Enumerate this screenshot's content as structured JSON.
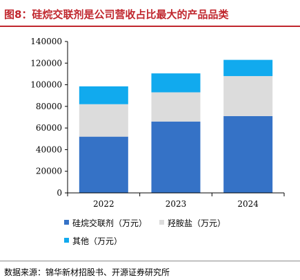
{
  "figure": {
    "title": "图8：硅烷交联剂是公司营收占比最大的产品品类",
    "source": "数据来源：锦华新材招股书、开源证券研究所"
  },
  "chart_data": {
    "type": "bar",
    "stacked": true,
    "categories": [
      "2022",
      "2023",
      "2024"
    ],
    "series": [
      {
        "name": "硅烷交联剂（万元）",
        "color": "#3572c6",
        "values": [
          52000,
          66000,
          71000
        ]
      },
      {
        "name": "羟胺盐（万元）",
        "color": "#dcdcdc",
        "values": [
          30000,
          27000,
          37000
        ]
      },
      {
        "name": "其他（万元）",
        "color": "#11aaee",
        "values": [
          16500,
          17500,
          15000
        ]
      }
    ],
    "ylim": [
      0,
      140000
    ],
    "yticks": [
      0,
      20000,
      40000,
      60000,
      80000,
      100000,
      120000,
      140000
    ],
    "grid": false,
    "legend_position": "bottom"
  }
}
